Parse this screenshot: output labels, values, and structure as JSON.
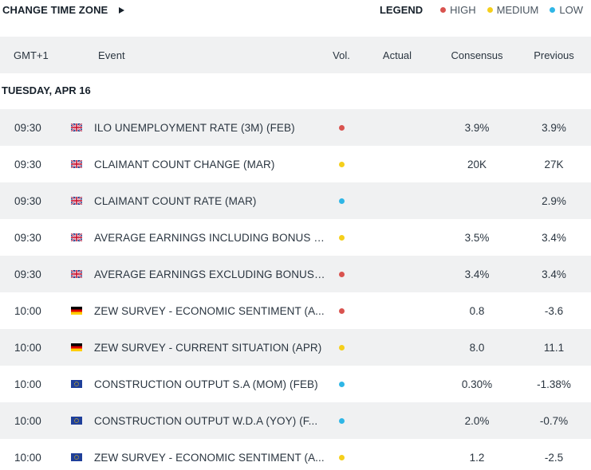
{
  "topbar": {
    "change_tz_label": "CHANGE TIME ZONE",
    "legend_title": "LEGEND",
    "legend": [
      {
        "label": "HIGH",
        "color": "#d9534f"
      },
      {
        "label": "MEDIUM",
        "color": "#f5cf1b"
      },
      {
        "label": "LOW",
        "color": "#2fb6e6"
      }
    ]
  },
  "columns": {
    "time": "GMT+1",
    "event": "Event",
    "vol": "Vol.",
    "actual": "Actual",
    "consensus": "Consensus",
    "previous": "Previous"
  },
  "day_label": "TUESDAY, APR 16",
  "rows": [
    {
      "time": "09:30",
      "flag": "uk-flag-icon",
      "event": "ILO UNEMPLOYMENT RATE (3M) (FEB)",
      "vol": "high",
      "actual": "",
      "consensus": "3.9%",
      "previous": "3.9%"
    },
    {
      "time": "09:30",
      "flag": "uk-flag-icon",
      "event": "CLAIMANT COUNT CHANGE (MAR)",
      "vol": "medium",
      "actual": "",
      "consensus": "20K",
      "previous": "27K"
    },
    {
      "time": "09:30",
      "flag": "uk-flag-icon",
      "event": "CLAIMANT COUNT RATE (MAR)",
      "vol": "low",
      "actual": "",
      "consensus": "",
      "previous": "2.9%"
    },
    {
      "time": "09:30",
      "flag": "uk-flag-icon",
      "event": "AVERAGE EARNINGS INCLUDING BONUS (...",
      "vol": "medium",
      "actual": "",
      "consensus": "3.5%",
      "previous": "3.4%"
    },
    {
      "time": "09:30",
      "flag": "uk-flag-icon",
      "event": "AVERAGE EARNINGS EXCLUDING BONUS ...",
      "vol": "high",
      "actual": "",
      "consensus": "3.4%",
      "previous": "3.4%"
    },
    {
      "time": "10:00",
      "flag": "germany-flag-icon",
      "event": "ZEW SURVEY - ECONOMIC SENTIMENT (A...",
      "vol": "high",
      "actual": "",
      "consensus": "0.8",
      "previous": "-3.6"
    },
    {
      "time": "10:00",
      "flag": "germany-flag-icon",
      "event": "ZEW SURVEY - CURRENT SITUATION (APR)",
      "vol": "medium",
      "actual": "",
      "consensus": "8.0",
      "previous": "11.1"
    },
    {
      "time": "10:00",
      "flag": "eu-flag-icon",
      "event": "CONSTRUCTION OUTPUT S.A (MOM) (FEB)",
      "vol": "low",
      "actual": "",
      "consensus": "0.30%",
      "previous": "-1.38%"
    },
    {
      "time": "10:00",
      "flag": "eu-flag-icon",
      "event": "CONSTRUCTION OUTPUT W.D.A (YOY) (F...",
      "vol": "low",
      "actual": "",
      "consensus": "2.0%",
      "previous": "-0.7%"
    },
    {
      "time": "10:00",
      "flag": "eu-flag-icon",
      "event": "ZEW SURVEY - ECONOMIC SENTIMENT (A...",
      "vol": "medium",
      "actual": "",
      "consensus": "1.2",
      "previous": "-2.5"
    }
  ]
}
